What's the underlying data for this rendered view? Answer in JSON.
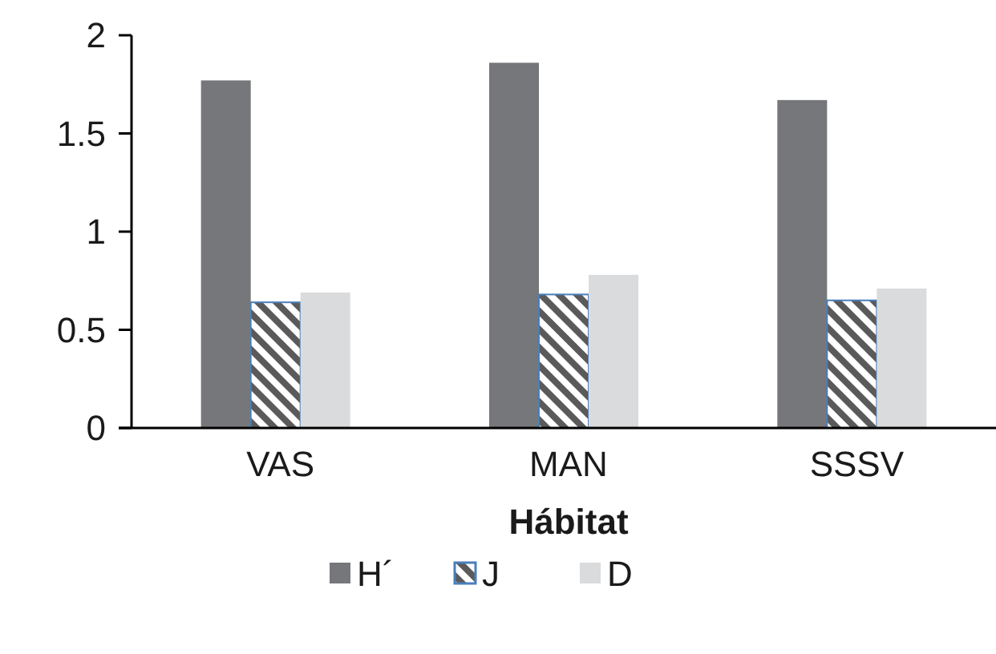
{
  "chart_data": {
    "type": "bar",
    "xlabel": "Hábitat",
    "categories": [
      "VAS",
      "MAN",
      "SSSV"
    ],
    "series": [
      {
        "name": "H´",
        "color": "#76777a",
        "values": [
          1.77,
          1.86,
          1.67
        ]
      },
      {
        "name": "J",
        "color": "#4a7ebb",
        "values": [
          0.64,
          0.68,
          0.65
        ]
      },
      {
        "name": "D",
        "color": "#dadbdc",
        "values": [
          0.69,
          0.78,
          0.71
        ]
      }
    ],
    "ylim": [
      0,
      2
    ],
    "yticks": [
      0,
      0.5,
      1,
      1.5,
      2
    ],
    "grid": false,
    "legend": "bottom"
  }
}
